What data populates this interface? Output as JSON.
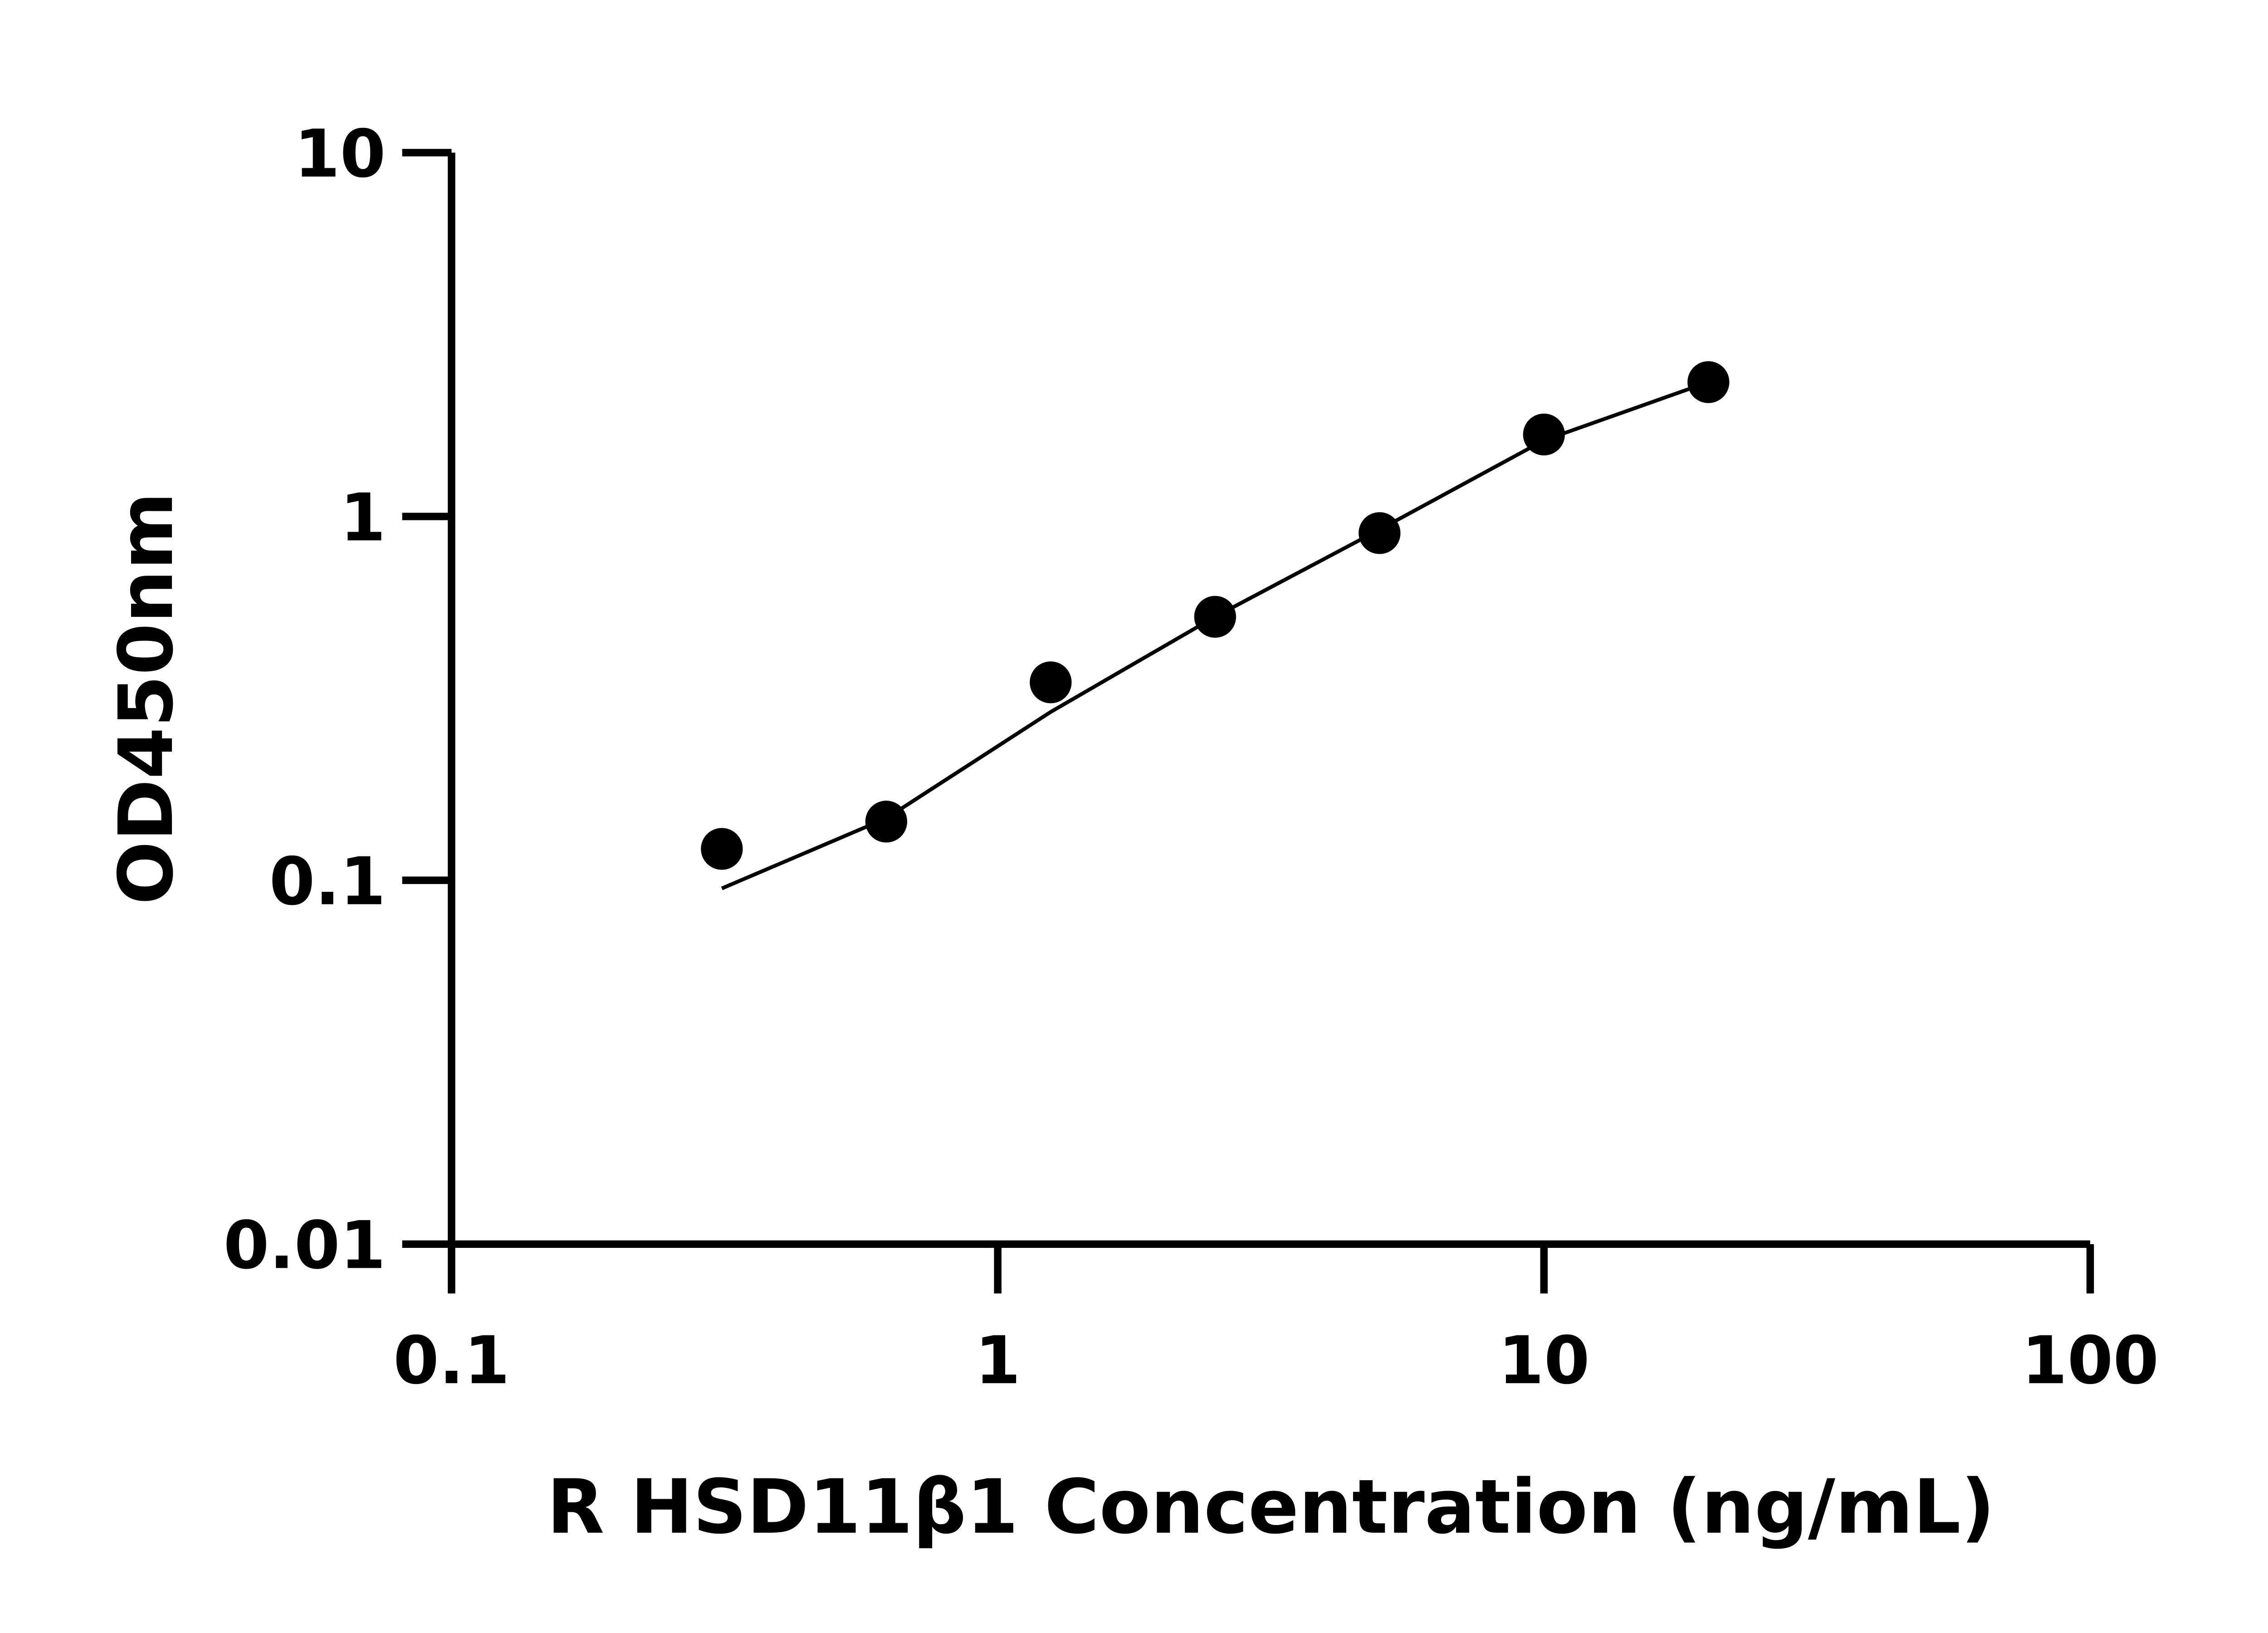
{
  "chart_data": {
    "type": "scatter",
    "title": "",
    "xlabel": "R HSD11β1 Concentration (ng/mL)",
    "ylabel": "OD450nm",
    "xscale": "log",
    "yscale": "log",
    "xlim": [
      0.1,
      100
    ],
    "ylim": [
      0.01,
      10
    ],
    "xticks": [
      "0.1",
      "1",
      "10",
      "100"
    ],
    "yticks": [
      "0.01",
      "0.1",
      "1",
      "10"
    ],
    "grid": false,
    "legend": "none",
    "points": {
      "x": [
        0.3125,
        0.625,
        1.25,
        2.5,
        5,
        10,
        20
      ],
      "y": [
        0.122,
        0.145,
        0.35,
        0.53,
        0.9,
        1.68,
        2.34
      ]
    },
    "fit_curve": {
      "x": [
        0.3125,
        0.625,
        1.25,
        2.5,
        5,
        10,
        20
      ],
      "y": [
        0.095,
        0.148,
        0.29,
        0.53,
        0.92,
        1.62,
        2.34
      ]
    },
    "colors": {
      "marker": "#000000",
      "line": "#000000"
    }
  }
}
